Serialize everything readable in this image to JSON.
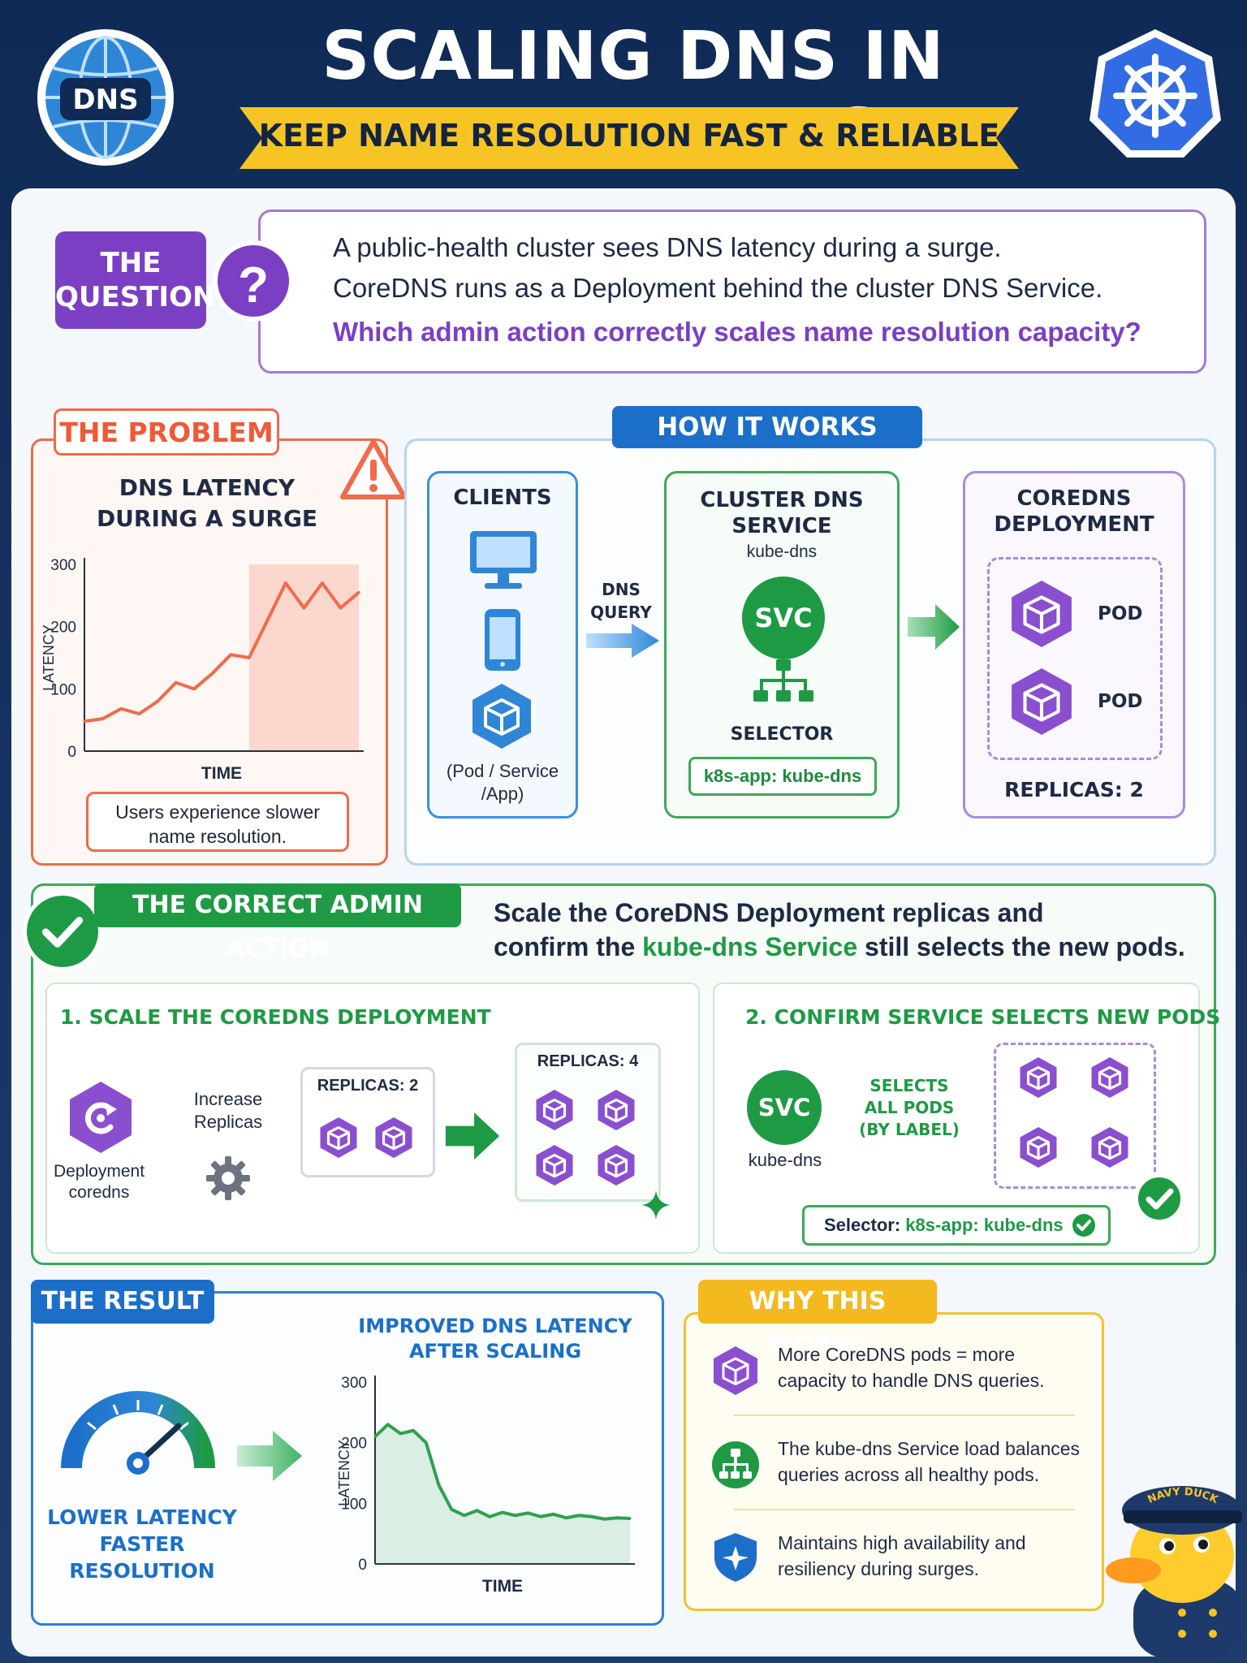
{
  "header": {
    "title": "SCALING DNS IN KUBERNETES",
    "subtitle": "KEEP NAME RESOLUTION FAST & RELIABLE",
    "logo_text": "DNS"
  },
  "question": {
    "badge_line1": "THE",
    "badge_line2": "QUESTION",
    "mark": "?",
    "line1": "A public-health cluster sees DNS latency during a surge.",
    "line2": "CoreDNS runs as a Deployment behind the cluster DNS Service.",
    "line3": "Which admin action correctly scales name resolution capacity?"
  },
  "problem": {
    "tab": "THE PROBLEM",
    "chart_title_1": "DNS LATENCY",
    "chart_title_2": "DURING A SURGE",
    "note_1": "Users experience slower",
    "note_2": "name resolution."
  },
  "how": {
    "tab": "HOW IT WORKS TODAY",
    "clients_title": "CLIENTS",
    "clients_sub_1": "(Pod / Service",
    "clients_sub_2": "/App)",
    "dns_query_1": "DNS",
    "dns_query_2": "QUERY",
    "svc_title_1": "CLUSTER DNS",
    "svc_title_2": "SERVICE",
    "svc_name": "kube-dns",
    "svc_badge": "SVC",
    "selector_label": "SELECTOR",
    "selector_value": "k8s-app: kube-dns",
    "coredns_title_1": "COREDNS",
    "coredns_title_2": "DEPLOYMENT",
    "pod_label": "POD",
    "replicas": "REPLICAS: 2"
  },
  "action": {
    "tab": "THE CORRECT ADMIN ACTION",
    "text_1": "Scale the CoreDNS Deployment replicas and",
    "text_2a": "confirm the ",
    "text_2b": "kube-dns Service",
    "text_2c": " still selects the new pods.",
    "step1_title": "1. SCALE THE COREDNS DEPLOYMENT",
    "step2_title": "2. CONFIRM SERVICE SELECTS NEW PODS",
    "deploy_lbl_1": "Deployment",
    "deploy_lbl_2": "coredns",
    "increase_1": "Increase",
    "increase_2": "Replicas",
    "rep_before": "REPLICAS: 2",
    "rep_after": "REPLICAS: 4",
    "svc_badge": "SVC",
    "svc_name": "kube-dns",
    "selects_1": "SELECTS",
    "selects_2": "ALL PODS",
    "selects_3": "(BY LABEL)",
    "selector_prefix": "Selector: ",
    "selector_value": "k8s-app: kube-dns"
  },
  "result": {
    "tab": "THE RESULT",
    "gauge_1": "LOWER LATENCY",
    "gauge_2": "FASTER RESOLUTION",
    "chart_title_1": "IMPROVED DNS LATENCY",
    "chart_title_2": "AFTER SCALING"
  },
  "why": {
    "tab": "WHY THIS WORKS",
    "item1_1": "More CoreDNS pods = more",
    "item1_2": "capacity to handle DNS queries.",
    "item2_1": "The kube-dns Service load balances",
    "item2_2": "queries across all healthy pods.",
    "item3_1": "Maintains high availability and",
    "item3_2": "resiliency during surges."
  },
  "mascot": {
    "cap_text": "NAVY DUCK"
  },
  "colors": {
    "orange": "#f06b4a",
    "blue": "#1b6fc9",
    "green": "#1e9a44",
    "purple": "#7b3fc4",
    "yellow": "#f4b91e"
  },
  "chart_data": [
    {
      "type": "line",
      "title": "DNS LATENCY DURING A SURGE",
      "xlabel": "TIME",
      "ylabel": "LATENCY",
      "ylim": [
        0,
        300
      ],
      "yticks": [
        0,
        100,
        200,
        300
      ],
      "highlight_region": "surge",
      "x": [
        0,
        1,
        2,
        3,
        4,
        5,
        6,
        7,
        8,
        9,
        10,
        11,
        12,
        13,
        14,
        15
      ],
      "values": [
        48,
        52,
        68,
        60,
        80,
        110,
        100,
        125,
        155,
        150,
        210,
        270,
        230,
        270,
        230,
        255
      ]
    },
    {
      "type": "area",
      "title": "IMPROVED DNS LATENCY AFTER SCALING",
      "xlabel": "TIME",
      "ylabel": "LATENCY",
      "ylim": [
        0,
        300
      ],
      "yticks": [
        0,
        100,
        200,
        300
      ],
      "x": [
        0,
        1,
        2,
        3,
        4,
        5,
        6,
        7,
        8,
        9,
        10,
        11,
        12,
        13,
        14,
        15,
        16,
        17,
        18,
        19,
        20
      ],
      "values": [
        210,
        230,
        215,
        220,
        200,
        130,
        90,
        80,
        88,
        78,
        85,
        80,
        84,
        78,
        82,
        76,
        80,
        78,
        74,
        76,
        75
      ]
    }
  ]
}
